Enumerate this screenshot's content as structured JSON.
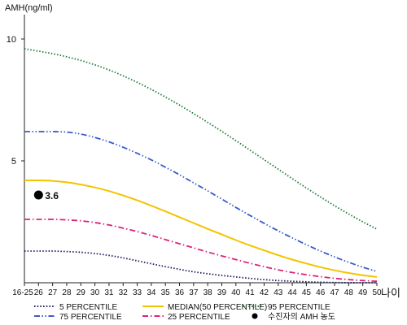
{
  "chart_data": {
    "type": "line",
    "ylabel": "AMH(ng/ml)",
    "xlabel": "나이",
    "categories": [
      "16-25",
      "26",
      "27",
      "28",
      "29",
      "30",
      "31",
      "32",
      "33",
      "34",
      "35",
      "36",
      "37",
      "38",
      "39",
      "40",
      "41",
      "42",
      "43",
      "44",
      "45",
      "46",
      "47",
      "48",
      "49",
      "50"
    ],
    "ylim": [
      0,
      11
    ],
    "yticks": [
      5,
      10
    ],
    "grid": false,
    "legend_position": "bottom",
    "series": [
      {
        "name": "5 PERCENTILE",
        "color": "#1a1a5e",
        "dash": "dotted",
        "values": [
          1.3,
          1.3,
          1.3,
          1.28,
          1.25,
          1.2,
          1.12,
          1.02,
          0.9,
          0.78,
          0.66,
          0.55,
          0.45,
          0.37,
          0.3,
          0.24,
          0.18,
          0.13,
          0.09,
          0.06,
          0.04,
          0.02,
          0.01,
          0.0,
          0.0,
          0.0
        ]
      },
      {
        "name": "25 PERCENTILE",
        "color": "#e0207a",
        "dash": "dashdot",
        "values": [
          2.6,
          2.6,
          2.6,
          2.58,
          2.54,
          2.47,
          2.37,
          2.24,
          2.1,
          1.94,
          1.77,
          1.6,
          1.43,
          1.26,
          1.1,
          0.95,
          0.8,
          0.66,
          0.53,
          0.42,
          0.33,
          0.25,
          0.18,
          0.13,
          0.09,
          0.06
        ]
      },
      {
        "name": "MEDIAN(50 PERCENTILE)",
        "color": "#f2c400",
        "dash": "solid",
        "values": [
          4.2,
          4.2,
          4.18,
          4.12,
          4.03,
          3.91,
          3.76,
          3.58,
          3.38,
          3.16,
          2.93,
          2.69,
          2.45,
          2.21,
          1.98,
          1.75,
          1.53,
          1.33,
          1.13,
          0.95,
          0.79,
          0.64,
          0.51,
          0.4,
          0.31,
          0.24
        ]
      },
      {
        "name": "75 PERCENTILE",
        "color": "#3a5bc7",
        "dash": "dashdotdot",
        "values": [
          6.2,
          6.2,
          6.2,
          6.18,
          6.1,
          5.96,
          5.78,
          5.56,
          5.31,
          5.04,
          4.74,
          4.43,
          4.1,
          3.77,
          3.43,
          3.09,
          2.76,
          2.44,
          2.13,
          1.84,
          1.56,
          1.3,
          1.06,
          0.84,
          0.64,
          0.46
        ]
      },
      {
        "name": "95 PERCENTILE",
        "color": "#1f7a3a",
        "dash": "dotted",
        "values": [
          9.6,
          9.5,
          9.4,
          9.27,
          9.12,
          8.94,
          8.73,
          8.49,
          8.22,
          7.93,
          7.62,
          7.29,
          6.94,
          6.58,
          6.21,
          5.83,
          5.44,
          5.05,
          4.66,
          4.27,
          3.89,
          3.52,
          3.16,
          2.82,
          2.5,
          2.2
        ]
      }
    ],
    "point": {
      "label": "수진자의 AMH 농도",
      "category": "26",
      "value": 3.6,
      "value_label": "3.6",
      "color": "#000000"
    }
  }
}
